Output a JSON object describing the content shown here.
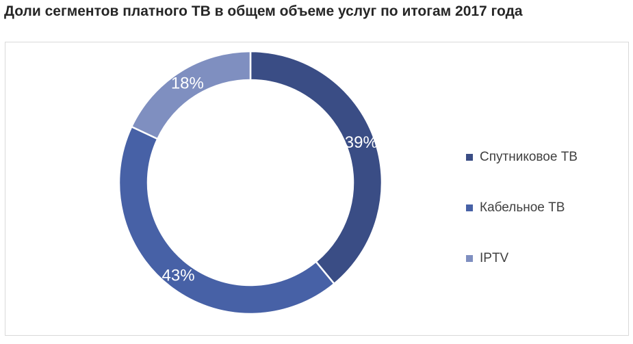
{
  "title": "Доли сегментов платного ТВ в общем объеме услуг по итогам 2017 года",
  "chart_data": {
    "type": "pie",
    "variant": "donut",
    "legend_position": "right",
    "categories": [
      "Спутниковое ТВ",
      "Кабельное ТВ",
      "IPTV"
    ],
    "values": [
      39,
      43,
      18
    ],
    "data_labels": [
      "39%",
      "43%",
      "18%"
    ],
    "colors": [
      "#3a4d85",
      "#4761a6",
      "#7f8fc0"
    ]
  }
}
